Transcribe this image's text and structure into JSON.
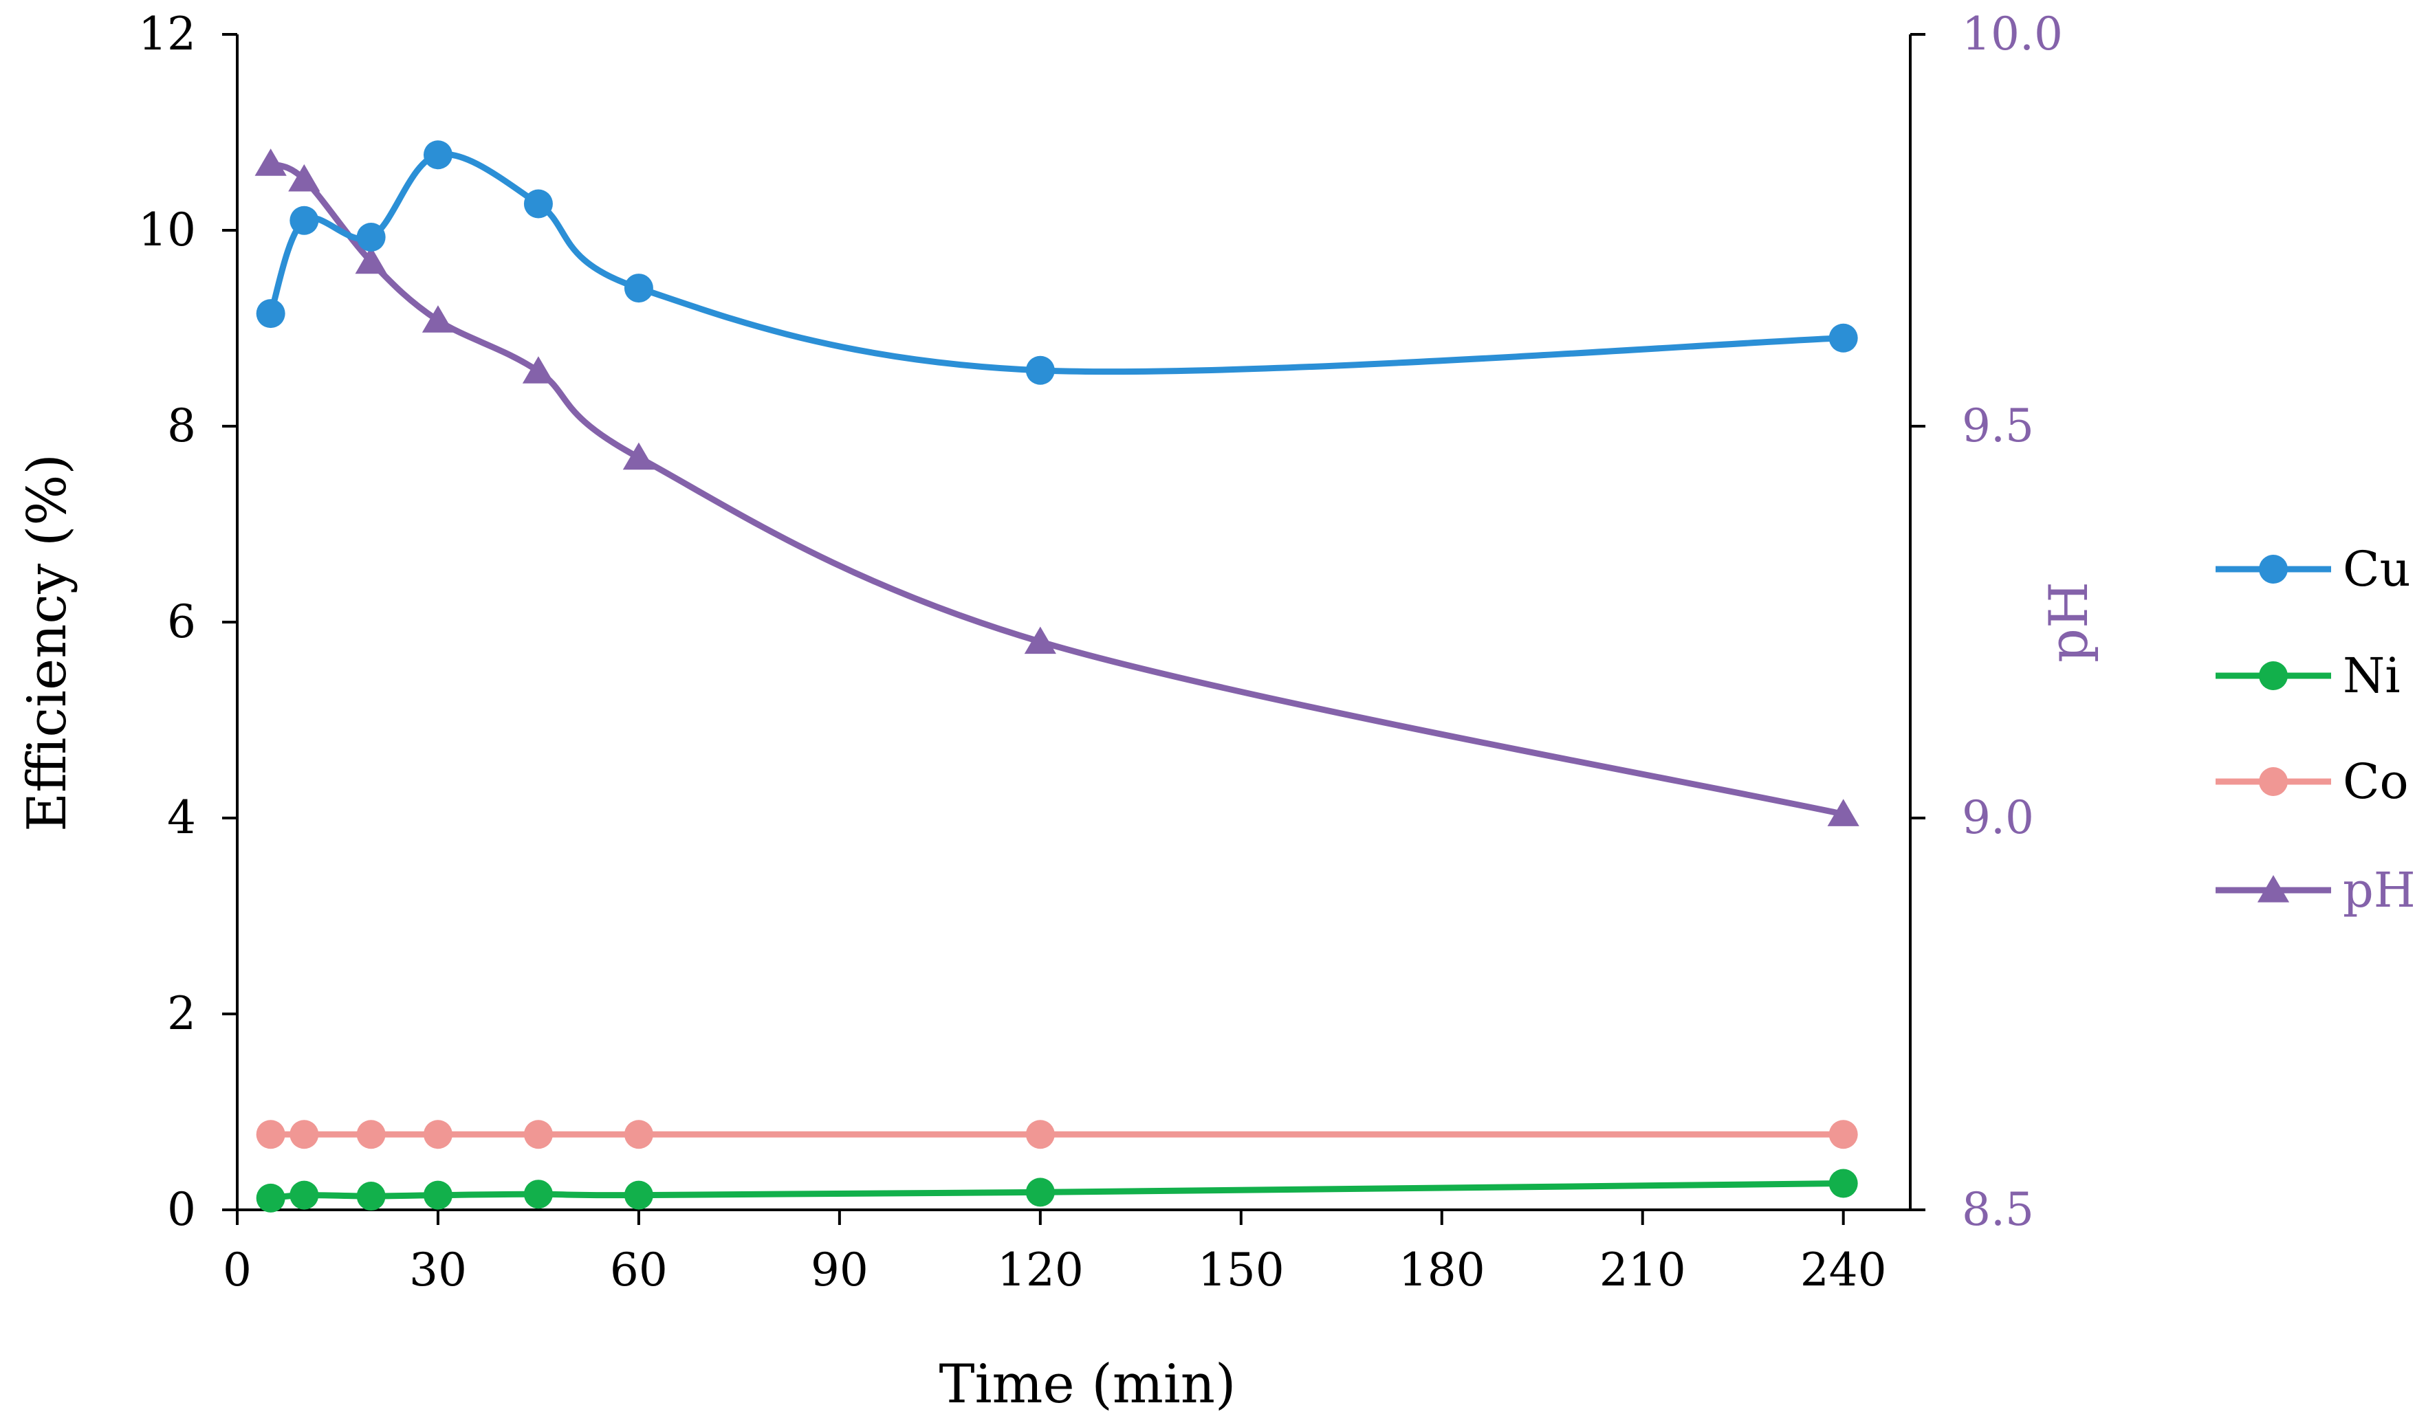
{
  "chart_data": {
    "type": "line",
    "title": "",
    "xlabel": "Time (min)",
    "ylabel": "Efficiency (%)",
    "y2label": "pH",
    "x": [
      5,
      10,
      20,
      30,
      45,
      60,
      120,
      240
    ],
    "xlim": [
      0,
      250
    ],
    "ylim": [
      0,
      12
    ],
    "y2lim": [
      8.5,
      10.0
    ],
    "xticks": [
      0,
      30,
      60,
      90,
      120,
      150,
      180,
      210,
      240
    ],
    "xtick_labels": [
      "0",
      "30",
      "60",
      "90",
      "120",
      "150",
      "180",
      "210",
      "240"
    ],
    "yticks": [
      0,
      2,
      4,
      6,
      8,
      10,
      12
    ],
    "ytick_labels": [
      "0",
      "2",
      "4",
      "6",
      "8",
      "10",
      "12"
    ],
    "y2ticks": [
      8.5,
      9.0,
      9.5,
      10.0
    ],
    "y2tick_labels": [
      "8.5",
      "9.0",
      "9.5",
      "10.0"
    ],
    "grid": false,
    "legend_position": "right",
    "series": [
      {
        "name": "Cu",
        "axis": "left",
        "marker": "circle",
        "color": "#2b8fd6",
        "values": [
          9.15,
          10.1,
          9.93,
          10.77,
          10.27,
          9.41,
          8.57,
          8.9
        ]
      },
      {
        "name": "Ni",
        "axis": "left",
        "marker": "circle",
        "color": "#12b04b",
        "values": [
          0.12,
          0.15,
          0.14,
          0.15,
          0.16,
          0.15,
          0.18,
          0.27
        ]
      },
      {
        "name": "Co",
        "axis": "left",
        "marker": "circle",
        "color": "#f09794",
        "values": [
          0.77,
          0.77,
          0.77,
          0.77,
          0.77,
          0.77,
          0.77,
          0.77
        ]
      },
      {
        "name": "pH",
        "axis": "right",
        "marker": "triangle",
        "color": "#8462aa",
        "values": [
          9.835,
          9.815,
          9.71,
          9.635,
          9.57,
          9.46,
          9.225,
          9.005
        ]
      }
    ],
    "colors": {
      "axis": "#000000",
      "ph_axis": "#8462aa"
    }
  }
}
